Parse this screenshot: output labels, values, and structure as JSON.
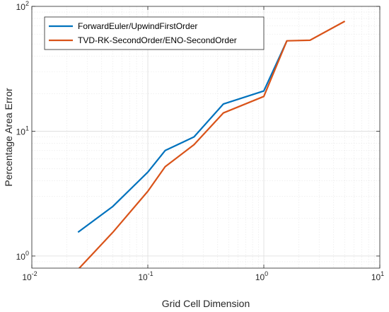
{
  "chart_data": {
    "type": "line",
    "xlabel": "Grid Cell Dimension",
    "ylabel": "Percentage Area Error",
    "xscale": "log",
    "yscale": "log",
    "xlim": [
      0.01,
      10
    ],
    "ylim": [
      0.8,
      100
    ],
    "grid": true,
    "minor_grid": true,
    "legend_position": "top-left",
    "x_ticks": [
      {
        "base": "10",
        "exp": "-2"
      },
      {
        "base": "10",
        "exp": "-1"
      },
      {
        "base": "10",
        "exp": "0"
      },
      {
        "base": "10",
        "exp": "1"
      }
    ],
    "y_ticks": [
      {
        "base": "10",
        "exp": "0"
      },
      {
        "base": "10",
        "exp": "1"
      },
      {
        "base": "10",
        "exp": "2"
      }
    ],
    "series": [
      {
        "name": "ForwardEuler/UpwindFirstOrder",
        "color": "#0072BD",
        "x": [
          0.025,
          0.05,
          0.1,
          0.141,
          0.25,
          0.447,
          1.0,
          1.58
        ],
        "y": [
          1.55,
          2.5,
          4.7,
          7.0,
          9.0,
          16.5,
          21.0,
          53.0
        ]
      },
      {
        "name": "TVD-RK-SecondOrder/ENO-SecondOrder",
        "color": "#D95319",
        "x": [
          0.025,
          0.05,
          0.1,
          0.141,
          0.25,
          0.447,
          1.0,
          1.58,
          2.5,
          5.0
        ],
        "y": [
          0.78,
          1.55,
          3.3,
          5.2,
          7.8,
          14.0,
          19.0,
          53.0,
          53.5,
          76.0
        ]
      }
    ]
  }
}
